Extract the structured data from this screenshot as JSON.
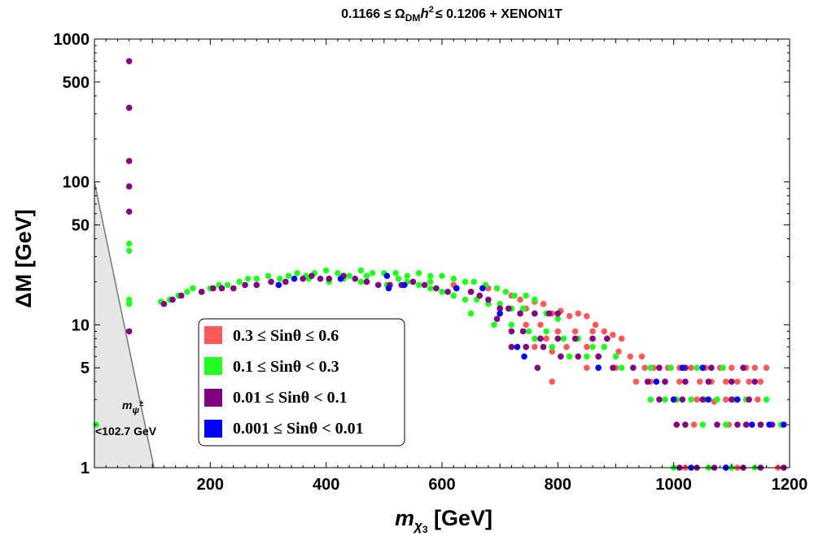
{
  "chart_data": {
    "type": "scatter",
    "title": "0.1166 ≤ Ω_DM h² ≤ 0.1206 + XENON1T",
    "title_parts": {
      "left": "0.1166 ≤ Ω",
      "sub": "DM",
      "mid": "h",
      "sup": "2",
      "right": "≤ 0.1206 + XENON1T"
    },
    "xlabel": "m_χ3 [GeV]",
    "xlabel_parts": {
      "main": "m",
      "sub": "χ",
      "subsub": "3",
      "unit": " [GeV]"
    },
    "ylabel": "ΔM [GeV]",
    "xlim": [
      0,
      1200
    ],
    "ylim": [
      1,
      1000
    ],
    "yscale": "log",
    "xticks": [
      200,
      400,
      600,
      800,
      1000,
      1200
    ],
    "xtick_labels": [
      "200",
      "400",
      "600",
      "800",
      "1000",
      "1200"
    ],
    "yticks": [
      1,
      5,
      10,
      50,
      100,
      500,
      1000
    ],
    "ytick_labels": [
      "1",
      "5",
      "10",
      "50",
      "100",
      "500",
      "1000"
    ],
    "excluded_region": {
      "label": "m_ψ± < 102.7 GeV",
      "label_main": "m",
      "label_sub": "ψ",
      "label_sup": "±",
      "label_value": "<102.7 GeV",
      "boundary": [
        [
          0,
          100
        ],
        [
          102.7,
          1
        ]
      ],
      "color": "#e6e6e6"
    },
    "legend": {
      "placement": "lower-left",
      "entries": [
        {
          "label": "0.3 ≤ Sinθ ≤ 0.6",
          "color": "#ff5a5a"
        },
        {
          "label": "0.1 ≤ Sinθ < 0.3",
          "color": "#22ff22"
        },
        {
          "label": "0.01 ≤ Sinθ < 0.1",
          "color": "#800080"
        },
        {
          "label": "0.001 ≤ Sinθ < 0.01",
          "color": "#0000ff"
        }
      ]
    },
    "series": [
      {
        "name": "0.3 ≤ Sinθ ≤ 0.6",
        "color": "#ff5a5a",
        "points": [
          [
            700,
            14
          ],
          [
            745,
            13
          ],
          [
            760,
            14.5
          ],
          [
            775,
            14
          ],
          [
            790,
            12
          ],
          [
            805,
            12.5
          ],
          [
            820,
            11.5
          ],
          [
            835,
            12
          ],
          [
            850,
            11.5
          ],
          [
            865,
            10
          ],
          [
            880,
            9
          ],
          [
            895,
            8.5
          ],
          [
            910,
            8
          ],
          [
            860,
            9
          ],
          [
            830,
            9
          ],
          [
            800,
            9
          ],
          [
            770,
            10
          ],
          [
            745,
            10
          ],
          [
            780,
            8
          ],
          [
            815,
            7
          ],
          [
            850,
            7
          ],
          [
            880,
            7
          ],
          [
            905,
            6.5
          ],
          [
            925,
            6
          ],
          [
            945,
            6
          ],
          [
            870,
            6
          ],
          [
            820,
            6
          ],
          [
            790,
            6.5
          ],
          [
            760,
            7
          ],
          [
            950,
            5
          ],
          [
            965,
            5
          ],
          [
            975,
            5
          ],
          [
            990,
            5
          ],
          [
            1010,
            5
          ],
          [
            1030,
            5
          ],
          [
            1055,
            5
          ],
          [
            1080,
            5
          ],
          [
            1100,
            5
          ],
          [
            1125,
            5
          ],
          [
            1140,
            5
          ],
          [
            1160,
            5
          ],
          [
            850,
            5
          ],
          [
            900,
            5
          ],
          [
            935,
            4
          ],
          [
            960,
            4
          ],
          [
            985,
            4
          ],
          [
            1010,
            4
          ],
          [
            1045,
            4
          ],
          [
            1065,
            4
          ],
          [
            1090,
            4
          ],
          [
            1110,
            4
          ],
          [
            1130,
            4
          ],
          [
            1150,
            4
          ],
          [
            790,
            4
          ],
          [
            1000,
            3
          ],
          [
            1040,
            3
          ],
          [
            1090,
            3
          ],
          [
            1145,
            3
          ],
          [
            1035,
            2
          ],
          [
            1095,
            2
          ],
          [
            1135,
            2
          ],
          [
            1020,
            1
          ],
          [
            1060,
            1
          ],
          [
            1110,
            1
          ],
          [
            1180,
            1
          ],
          [
            1070,
            2.9
          ],
          [
            620,
            19
          ],
          [
            680,
            18
          ],
          [
            650,
            17
          ],
          [
            720,
            16
          ],
          [
            735,
            15
          ]
        ]
      },
      {
        "name": "0.1 ≤ Sinθ < 0.3",
        "color": "#22ff22",
        "points": [
          [
            3,
            2
          ],
          [
            60,
            37
          ],
          [
            60,
            33
          ],
          [
            60,
            15
          ],
          [
            60,
            14
          ],
          [
            115,
            14.5
          ],
          [
            130,
            15
          ],
          [
            145,
            16
          ],
          [
            160,
            17
          ],
          [
            170,
            18
          ],
          [
            185,
            17
          ],
          [
            200,
            18
          ],
          [
            215,
            19
          ],
          [
            230,
            19
          ],
          [
            250,
            20
          ],
          [
            265,
            21
          ],
          [
            280,
            21
          ],
          [
            300,
            22
          ],
          [
            320,
            21
          ],
          [
            335,
            22
          ],
          [
            350,
            23
          ],
          [
            365,
            22
          ],
          [
            380,
            23
          ],
          [
            400,
            24
          ],
          [
            420,
            23
          ],
          [
            440,
            22
          ],
          [
            460,
            24
          ],
          [
            480,
            23
          ],
          [
            500,
            23
          ],
          [
            520,
            23
          ],
          [
            540,
            22
          ],
          [
            560,
            23
          ],
          [
            580,
            22
          ],
          [
            600,
            22
          ],
          [
            620,
            21
          ],
          [
            640,
            20
          ],
          [
            655,
            20
          ],
          [
            675,
            19
          ],
          [
            695,
            18
          ],
          [
            710,
            17
          ],
          [
            725,
            16
          ],
          [
            745,
            16
          ],
          [
            760,
            15
          ],
          [
            540,
            20
          ],
          [
            560,
            19
          ],
          [
            580,
            18
          ],
          [
            600,
            17
          ],
          [
            620,
            16
          ],
          [
            640,
            15
          ],
          [
            660,
            15
          ],
          [
            680,
            14
          ],
          [
            700,
            14
          ],
          [
            720,
            13
          ],
          [
            740,
            13
          ],
          [
            760,
            12
          ],
          [
            780,
            12
          ],
          [
            800,
            11
          ],
          [
            650,
            12
          ],
          [
            690,
            10
          ],
          [
            720,
            10
          ],
          [
            750,
            9
          ],
          [
            780,
            9
          ],
          [
            810,
            8
          ],
          [
            835,
            8
          ],
          [
            860,
            7
          ],
          [
            880,
            7
          ],
          [
            900,
            6
          ],
          [
            760,
            8
          ],
          [
            790,
            7
          ],
          [
            820,
            6
          ],
          [
            850,
            6
          ],
          [
            870,
            5
          ],
          [
            910,
            5
          ],
          [
            960,
            5
          ],
          [
            995,
            5
          ],
          [
            1040,
            5
          ],
          [
            1085,
            5
          ],
          [
            960,
            3
          ],
          [
            985,
            3
          ],
          [
            1005,
            3
          ],
          [
            1030,
            3
          ],
          [
            1055,
            3
          ],
          [
            1075,
            3
          ],
          [
            1105,
            3
          ],
          [
            1125,
            3
          ],
          [
            1160,
            3
          ],
          [
            1185,
            2
          ],
          [
            1050,
            2
          ],
          [
            1090,
            2
          ],
          [
            1150,
            2
          ],
          [
            1000,
            1
          ],
          [
            1060,
            1
          ],
          [
            1100,
            1
          ],
          [
            1140,
            1
          ],
          [
            405,
            20
          ],
          [
            460,
            20
          ],
          [
            505,
            19
          ],
          [
            525,
            21
          ],
          [
            430,
            21
          ],
          [
            370,
            21
          ],
          [
            470,
            22
          ],
          [
            580,
            20
          ]
        ]
      },
      {
        "name": "0.01 ≤ Sinθ < 0.1",
        "color": "#800080",
        "points": [
          [
            60,
            700
          ],
          [
            60,
            330
          ],
          [
            60,
            140
          ],
          [
            60,
            93
          ],
          [
            60,
            62
          ],
          [
            60,
            9
          ],
          [
            120,
            14
          ],
          [
            135,
            15
          ],
          [
            150,
            16
          ],
          [
            185,
            17
          ],
          [
            205,
            18
          ],
          [
            220,
            18
          ],
          [
            240,
            18
          ],
          [
            260,
            19
          ],
          [
            280,
            19
          ],
          [
            305,
            20
          ],
          [
            330,
            20
          ],
          [
            360,
            21
          ],
          [
            375,
            22
          ],
          [
            390,
            21
          ],
          [
            405,
            21
          ],
          [
            430,
            22
          ],
          [
            450,
            21
          ],
          [
            470,
            20
          ],
          [
            490,
            19
          ],
          [
            510,
            19
          ],
          [
            530,
            19
          ],
          [
            550,
            20
          ],
          [
            570,
            19
          ],
          [
            590,
            18
          ],
          [
            610,
            17
          ],
          [
            625,
            18
          ],
          [
            650,
            17
          ],
          [
            665,
            16
          ],
          [
            680,
            15
          ],
          [
            700,
            13
          ],
          [
            715,
            13
          ],
          [
            735,
            12
          ],
          [
            760,
            12
          ],
          [
            785,
            12
          ],
          [
            800,
            12
          ],
          [
            695,
            11
          ],
          [
            720,
            9
          ],
          [
            740,
            9
          ],
          [
            770,
            8
          ],
          [
            800,
            8
          ],
          [
            830,
            8
          ],
          [
            860,
            8
          ],
          [
            885,
            8
          ],
          [
            720,
            7
          ],
          [
            745,
            7
          ],
          [
            775,
            7
          ],
          [
            805,
            6
          ],
          [
            835,
            6
          ],
          [
            870,
            6
          ],
          [
            895,
            5
          ],
          [
            930,
            5
          ],
          [
            975,
            5
          ],
          [
            1020,
            5
          ],
          [
            1065,
            5
          ],
          [
            1120,
            5
          ],
          [
            765,
            5
          ],
          [
            955,
            4
          ],
          [
            985,
            4
          ],
          [
            1020,
            4
          ],
          [
            1060,
            4
          ],
          [
            1100,
            4
          ],
          [
            1140,
            4
          ],
          [
            975,
            3
          ],
          [
            1015,
            3
          ],
          [
            1050,
            3
          ],
          [
            1100,
            3
          ],
          [
            1130,
            3
          ],
          [
            1005,
            2
          ],
          [
            1020,
            2
          ],
          [
            1075,
            2
          ],
          [
            1110,
            2
          ],
          [
            1125,
            2
          ],
          [
            1150,
            2
          ],
          [
            1170,
            2
          ],
          [
            1010,
            1
          ],
          [
            1040,
            1
          ],
          [
            1070,
            1
          ],
          [
            1090,
            1
          ],
          [
            1120,
            1
          ],
          [
            1150,
            1
          ],
          [
            1190,
            1
          ]
        ]
      },
      {
        "name": "0.001 ≤ Sinθ < 0.01",
        "color": "#0000ff",
        "points": [
          [
            318,
            19
          ],
          [
            345,
            21
          ],
          [
            425,
            21
          ],
          [
            505,
            22
          ],
          [
            508,
            18
          ],
          [
            535,
            19
          ],
          [
            625,
            18
          ],
          [
            670,
            18
          ],
          [
            700,
            12
          ],
          [
            730,
            7
          ],
          [
            742,
            6
          ],
          [
            870,
            5
          ],
          [
            970,
            4
          ],
          [
            1000,
            3
          ],
          [
            1015,
            5
          ],
          [
            1050,
            5
          ],
          [
            1060,
            3
          ],
          [
            1110,
            3
          ],
          [
            1135,
            2
          ],
          [
            1165,
            2
          ],
          [
            1190,
            2
          ],
          [
            1030,
            1
          ],
          [
            1090,
            1
          ]
        ]
      }
    ]
  }
}
